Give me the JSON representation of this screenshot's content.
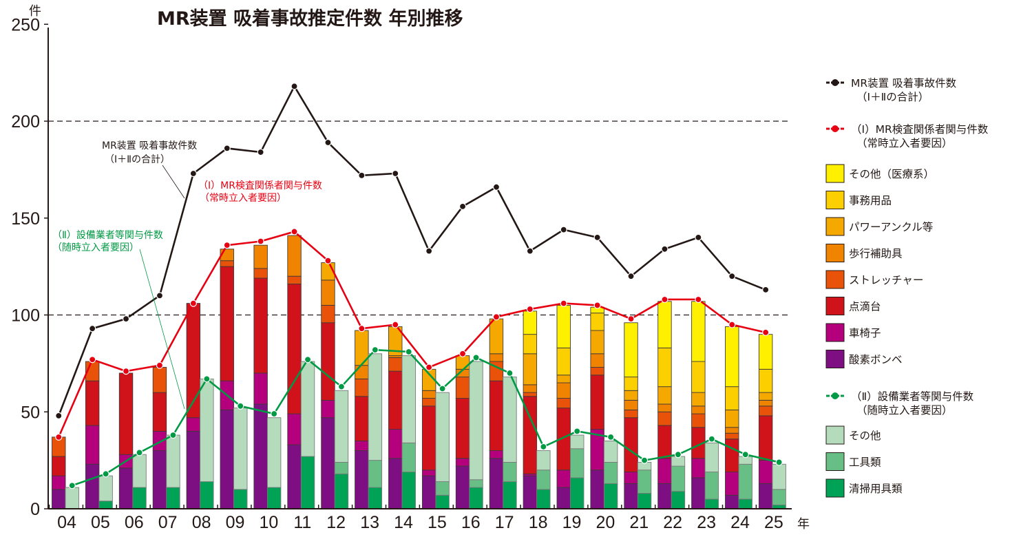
{
  "chart_data": {
    "type": "bar",
    "title": "MR装置 吸着事故推定件数 年別推移",
    "ylabel": "件",
    "xlabel": "年",
    "ylim": [
      0,
      250
    ],
    "yticks": [
      "0",
      "50",
      "100",
      "150",
      "200",
      "250"
    ],
    "grid": "dashed at 100 and 200",
    "legend_position": "right",
    "categories": [
      "04",
      "05",
      "06",
      "07",
      "08",
      "09",
      "10",
      "11",
      "12",
      "13",
      "14",
      "15",
      "16",
      "17",
      "18",
      "19",
      "20",
      "21",
      "22",
      "23",
      "24",
      "25"
    ],
    "group_I": {
      "label": [
        "（Ⅰ）MR検査関係者関与件数",
        "（常時立入者要因）"
      ],
      "series": [
        {
          "name": "酸素ボンベ",
          "color": "#7d0f82",
          "values": [
            10,
            23,
            21,
            30,
            40,
            51,
            54,
            33,
            47,
            30,
            26,
            17,
            22,
            26,
            17,
            11,
            20,
            13,
            13,
            16,
            7,
            13
          ]
        },
        {
          "name": "車椅子",
          "color": "#b4007d",
          "values": [
            7,
            20,
            7,
            10,
            7,
            15,
            16,
            16,
            9,
            5,
            15,
            3,
            4,
            4,
            1,
            9,
            21,
            6,
            13,
            10,
            12,
            12
          ]
        },
        {
          "name": "点滴台",
          "color": "#d0121b",
          "values": [
            10,
            23,
            42,
            20,
            59,
            59,
            49,
            67,
            40,
            23,
            30,
            33,
            31,
            36,
            40,
            32,
            28,
            28,
            17,
            16,
            17,
            23
          ]
        },
        {
          "name": "ストレッチャー",
          "color": "#e95309",
          "values": [
            10,
            10,
            0,
            13,
            0,
            3,
            5,
            4,
            9,
            9,
            7,
            4,
            11,
            10,
            2,
            5,
            4,
            4,
            7,
            7,
            3,
            5
          ]
        },
        {
          "name": "歩行補助具",
          "color": "#f08300",
          "values": [
            0,
            0,
            0,
            0,
            0,
            6,
            12,
            21,
            13,
            7,
            1,
            4,
            4,
            4,
            4,
            8,
            7,
            5,
            4,
            4,
            3,
            3
          ]
        },
        {
          "name": "パワーアンクル等",
          "color": "#f5a800",
          "values": [
            0,
            0,
            0,
            0,
            0,
            0,
            0,
            0,
            9,
            18,
            15,
            11,
            7,
            18,
            16,
            4,
            12,
            5,
            9,
            7,
            9,
            4
          ]
        },
        {
          "name": "事務用品",
          "color": "#fcd000",
          "values": [
            0,
            0,
            0,
            0,
            0,
            0,
            0,
            0,
            0,
            0,
            0,
            0,
            0,
            0,
            10,
            14,
            9,
            7,
            20,
            16,
            12,
            12
          ]
        },
        {
          "name": "その他（医療系）",
          "color": "#fff000",
          "values": [
            0,
            0,
            0,
            0,
            0,
            0,
            0,
            0,
            0,
            0,
            0,
            0,
            0,
            0,
            12,
            22,
            3,
            28,
            24,
            31,
            31,
            18
          ]
        }
      ]
    },
    "group_II": {
      "label": [
        "（Ⅱ）設備業者等関与件数",
        "（随時立入者要因）"
      ],
      "series": [
        {
          "name": "清掃用具類",
          "color": "#00a356",
          "values": [
            0,
            4,
            11,
            11,
            14,
            10,
            11,
            27,
            18,
            11,
            19,
            7,
            11,
            14,
            10,
            16,
            13,
            8,
            9,
            5,
            5,
            2
          ]
        },
        {
          "name": "工具類",
          "color": "#68bf85",
          "values": [
            0,
            0,
            0,
            0,
            0,
            0,
            0,
            0,
            6,
            14,
            15,
            7,
            4,
            10,
            10,
            15,
            11,
            12,
            13,
            14,
            18,
            8
          ]
        },
        {
          "name": "その他",
          "color": "#b4dbbc",
          "values": [
            11,
            13,
            17,
            27,
            53,
            42,
            36,
            49,
            37,
            55,
            45,
            46,
            61,
            44,
            10,
            7,
            11,
            4,
            5,
            15,
            4,
            13
          ]
        }
      ]
    },
    "lines": [
      {
        "name": "MR装置 吸着事故件数",
        "name2": "（Ⅰ＋Ⅱの合計）",
        "color": "#231815",
        "values": [
          48,
          93,
          98,
          110,
          173,
          186,
          184,
          218,
          189,
          172,
          173,
          133,
          156,
          166,
          133,
          144,
          140,
          120,
          134,
          140,
          120,
          113
        ]
      },
      {
        "name": "（Ⅰ）MR検査関係者関与件数",
        "name2": "（常時立入者要因）",
        "color": "#e60012",
        "values": [
          37,
          77,
          71,
          74,
          106,
          136,
          138,
          143,
          128,
          93,
          95,
          73,
          80,
          99,
          103,
          106,
          105,
          98,
          108,
          108,
          95,
          91
        ]
      },
      {
        "name": "（Ⅱ）設備業者等関与件数",
        "name2": "（随時立入者要因）",
        "color": "#009944",
        "values": [
          12,
          18,
          29,
          38,
          67,
          53,
          49,
          77,
          63,
          82,
          81,
          62,
          78,
          70,
          32,
          40,
          37,
          25,
          28,
          36,
          28,
          24
        ]
      }
    ],
    "annotations": {
      "total": [
        "MR装置 吸着事故件数",
        "（Ⅰ＋Ⅱの合計）"
      ],
      "group_I": [
        "（Ⅰ）MR検査関係者関与件数",
        "（常時立入者要因）"
      ],
      "group_II": [
        "（Ⅱ）設備業者等関与件数",
        "（随時立入者要因）"
      ]
    }
  }
}
